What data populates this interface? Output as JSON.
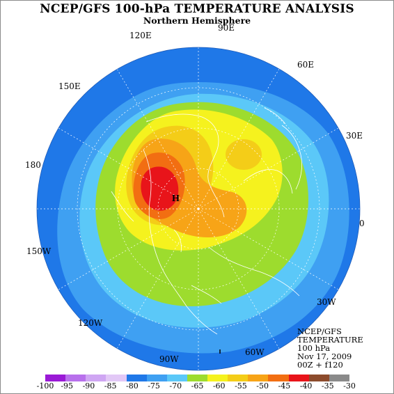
{
  "title": "NCEP/GFS 100-hPa TEMPERATURE ANALYSIS",
  "subtitle": "Northern Hemisphere",
  "longitude_labels": [
    "120E",
    "90E",
    "60E",
    "150E",
    "30E",
    "180",
    "0",
    "150W",
    "30W",
    "120W",
    "60W",
    "90W"
  ],
  "high_marker": "H",
  "info": [
    "NCEP/GFS",
    "TEMPERATURE",
    "100 hPa",
    "Nov 17, 2009",
    "00Z + f120"
  ],
  "colorbar": {
    "ticks": [
      "-100",
      "-95",
      "-90",
      "-85",
      "-80",
      "-75",
      "-70",
      "-65",
      "-60",
      "-55",
      "-50",
      "-45",
      "-40",
      "-35",
      "-30"
    ],
    "colors": [
      "#9a1ad6",
      "#b870ec",
      "#cfa6f3",
      "#e2c8f6",
      "#1f78e8",
      "#3fa0f2",
      "#5bc8f8",
      "#9ddc2e",
      "#f5f21e",
      "#f4cd18",
      "#f7a417",
      "#f26e12",
      "#e8141a",
      "#8c4b2c",
      "#8a8a8a"
    ]
  },
  "legend_levels": [
    "-80",
    "-75",
    "-70",
    "-65",
    "-60",
    "-55",
    "-50",
    "-45",
    "-40"
  ],
  "colors": {
    "ocean_ring": "#1f78e8",
    "coast": "#ffffff",
    "grid": "#ffffff"
  }
}
